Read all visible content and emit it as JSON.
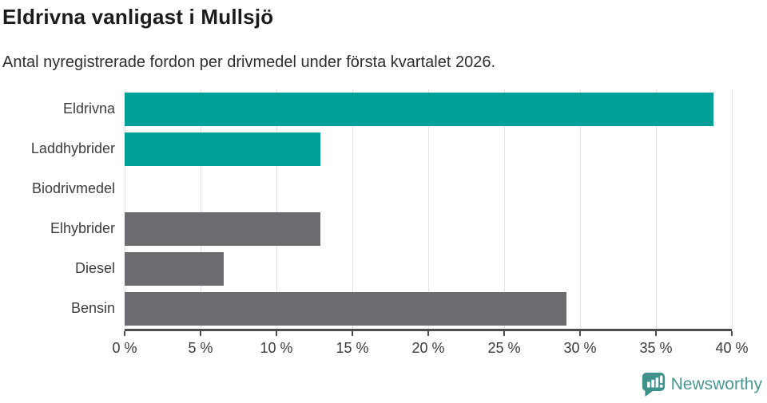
{
  "header": {
    "title": "Eldrivna vanligast i Mullsjö",
    "subtitle": "Antal nyregistrerade fordon per drivmedel under första kvartalet 2026."
  },
  "chart_data": {
    "type": "bar",
    "orientation": "horizontal",
    "title": "Eldrivna vanligast i Mullsjö",
    "subtitle": "Antal nyregistrerade fordon per drivmedel under första kvartalet 2026.",
    "categories": [
      "Eldrivna",
      "Laddhybrider",
      "Biodrivmedel",
      "Elhybrider",
      "Diesel",
      "Bensin"
    ],
    "values": [
      38.8,
      12.9,
      0,
      12.9,
      6.5,
      29.1
    ],
    "unit": "%",
    "bar_colors": [
      "#00a099",
      "#00a099",
      "#00a099",
      "#6b6b70",
      "#6b6b70",
      "#6b6b70"
    ],
    "xlabel": "",
    "ylabel": "",
    "xlim": [
      0,
      40
    ],
    "x_tick_step": 5,
    "x_ticks": [
      "0 %",
      "5 %",
      "10 %",
      "15 %",
      "20 %",
      "25 %",
      "30 %",
      "35 %",
      "40 %"
    ],
    "grid": "vertical-only",
    "legend": "none"
  },
  "colors": {
    "accent_teal": "#00a099",
    "neutral_gray": "#6b6b70",
    "axis": "#4c4c4c",
    "gridline": "#e3e3e3",
    "title_text": "#1b1b1b",
    "label_text": "#3d3d3d",
    "logo_teal": "#3f918c",
    "logo_text": "#4a9792"
  },
  "footer": {
    "brand": "Newsworthy"
  }
}
